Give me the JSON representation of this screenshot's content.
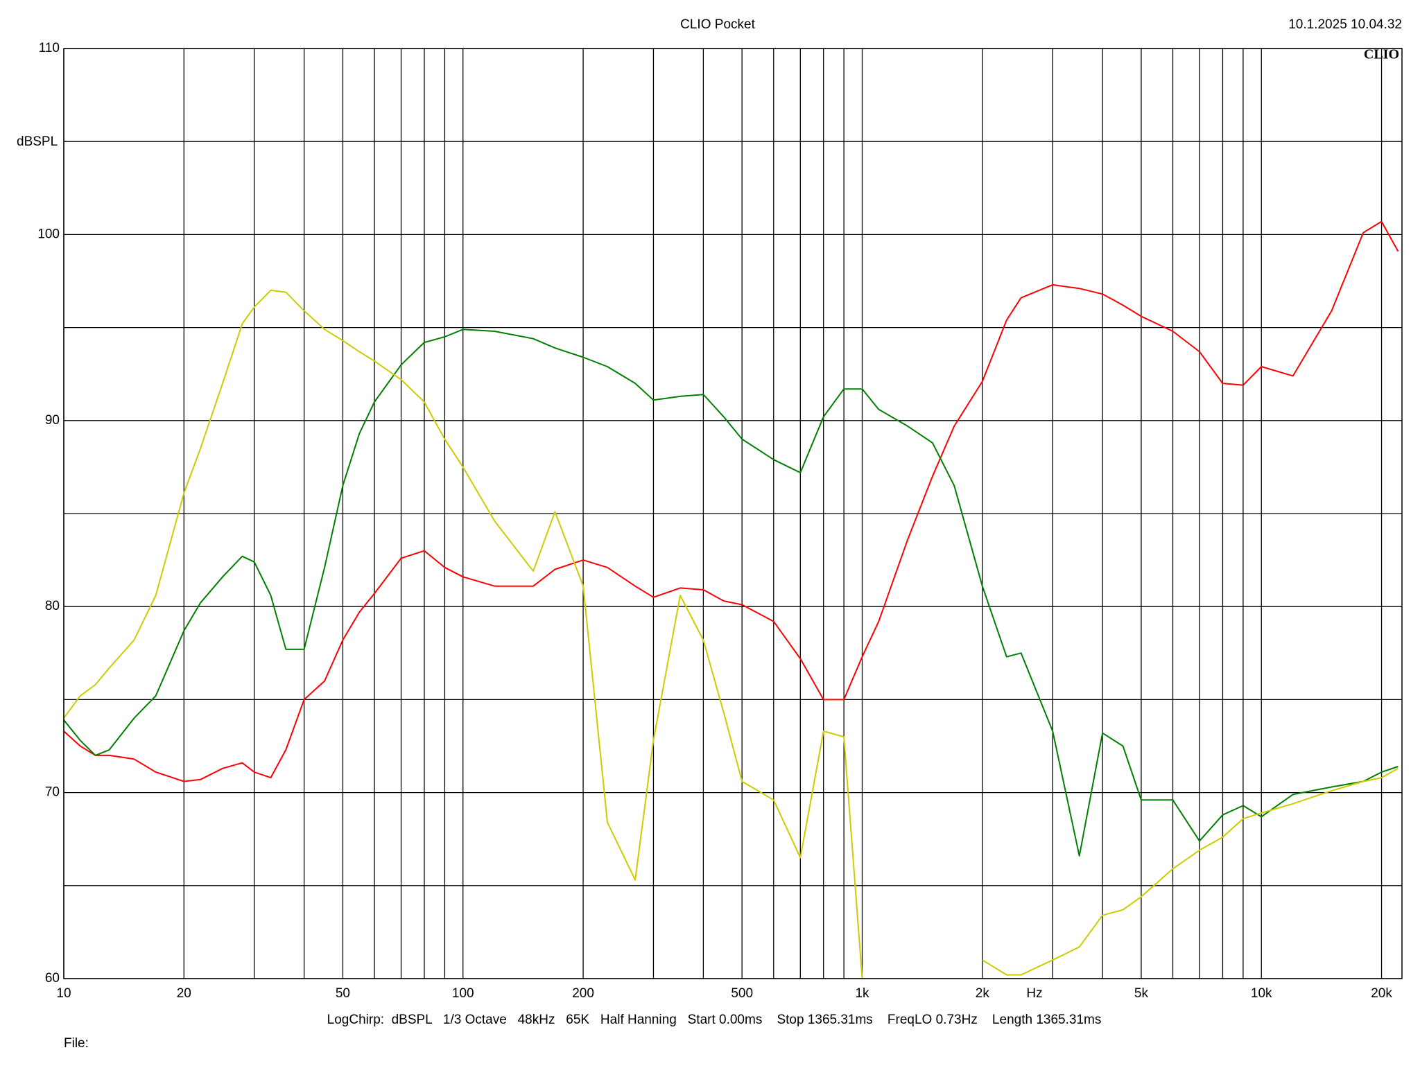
{
  "chart_data": {
    "type": "line",
    "title": "CLIO Pocket",
    "timestamp": "10.1.2025 10.04.32",
    "logo": "CLIO",
    "y_label": "dBSPL",
    "x_label": "Hz",
    "footer": "LogChirp:  dBSPL   1/3 Octave   48kHz   65K   Half Hanning   Start 0.00ms    Stop 1365.31ms    FreqLO 0.73Hz    Length 1365.31ms",
    "file_label": "File:",
    "log_x": true,
    "grid": true,
    "xlim": [
      10,
      22500
    ],
    "ylim": [
      60,
      110
    ],
    "xticks": [
      10,
      20,
      50,
      100,
      200,
      500,
      {
        "value": 1000,
        "label": "1k"
      },
      {
        "value": 2000,
        "label": "2k"
      },
      {
        "value": 5000,
        "label": "5k"
      },
      {
        "value": 10000,
        "label": "10k"
      },
      {
        "value": 20000,
        "label": "20k"
      }
    ],
    "x_minor_ticks": [
      30,
      40,
      60,
      70,
      80,
      90,
      300,
      400,
      600,
      700,
      800,
      900,
      3000,
      4000,
      6000,
      7000,
      8000,
      9000
    ],
    "yticks": [
      60,
      70,
      80,
      90,
      100,
      110
    ],
    "y_minor_ticks": [
      65,
      75,
      85,
      95,
      105
    ],
    "x": [
      10,
      11,
      12,
      13,
      15,
      17,
      20,
      22,
      25,
      28,
      30,
      33,
      36,
      40,
      45,
      50,
      55,
      60,
      70,
      80,
      90,
      100,
      120,
      150,
      170,
      200,
      230,
      270,
      300,
      350,
      400,
      450,
      500,
      600,
      700,
      800,
      900,
      1000,
      1100,
      1300,
      1500,
      1700,
      2000,
      2300,
      2500,
      3000,
      3500,
      4000,
      4500,
      5000,
      6000,
      7000,
      8000,
      9000,
      10000,
      12000,
      15000,
      18000,
      20000,
      22000
    ],
    "series": [
      {
        "color": "#ff0000",
        "values": [
          73.3,
          72.5,
          72.0,
          72.0,
          71.8,
          71.1,
          70.6,
          70.7,
          71.3,
          71.6,
          71.1,
          70.8,
          72.3,
          75.0,
          76.0,
          78.2,
          79.7,
          80.7,
          82.6,
          83.0,
          82.1,
          81.6,
          81.1,
          81.1,
          82.0,
          82.5,
          82.1,
          81.1,
          80.5,
          81.0,
          80.9,
          80.3,
          80.1,
          79.2,
          77.2,
          75.0,
          75.0,
          77.3,
          79.2,
          83.6,
          87.0,
          89.7,
          92.1,
          95.4,
          96.6,
          97.3,
          97.1,
          96.8,
          96.2,
          95.6,
          94.8,
          93.7,
          92.0,
          91.9,
          92.9,
          92.4,
          95.9,
          100.1,
          100.7,
          99.1
        ]
      },
      {
        "color": "#008000",
        "values": [
          73.9,
          72.8,
          72.0,
          72.3,
          74.0,
          75.2,
          78.7,
          80.2,
          81.6,
          82.7,
          82.4,
          80.6,
          77.7,
          77.7,
          82.1,
          86.5,
          89.3,
          91.0,
          93.0,
          94.2,
          94.5,
          94.9,
          94.8,
          94.4,
          93.9,
          93.4,
          92.9,
          92.0,
          91.1,
          91.3,
          91.4,
          90.2,
          89.0,
          87.9,
          87.2,
          90.2,
          91.7,
          91.7,
          90.6,
          89.7,
          88.8,
          86.5,
          81.1,
          77.3,
          77.5,
          73.3,
          66.6,
          73.2,
          72.5,
          69.6,
          69.6,
          67.4,
          68.8,
          69.3,
          68.7,
          69.9,
          70.3,
          70.6,
          71.1,
          71.4
        ]
      },
      {
        "color": "#cccc00",
        "values": [
          74.0,
          75.2,
          75.8,
          76.7,
          78.2,
          80.6,
          86.1,
          88.5,
          92.0,
          95.2,
          96.1,
          97.0,
          96.9,
          95.9,
          94.9,
          94.3,
          93.7,
          93.2,
          92.2,
          91.0,
          89.0,
          87.5,
          84.6,
          81.9,
          85.1,
          81.1,
          68.4,
          65.3,
          72.8,
          80.6,
          78.2,
          74.3,
          70.6,
          69.6,
          66.5,
          73.3,
          73.0,
          60.0,
          null,
          null,
          null,
          null,
          61.0,
          60.2,
          60.2,
          61.0,
          61.7,
          63.4,
          63.7,
          64.4,
          65.9,
          66.9,
          67.6,
          68.6,
          68.9,
          69.4,
          70.1,
          70.6,
          70.8,
          71.3
        ]
      }
    ]
  }
}
